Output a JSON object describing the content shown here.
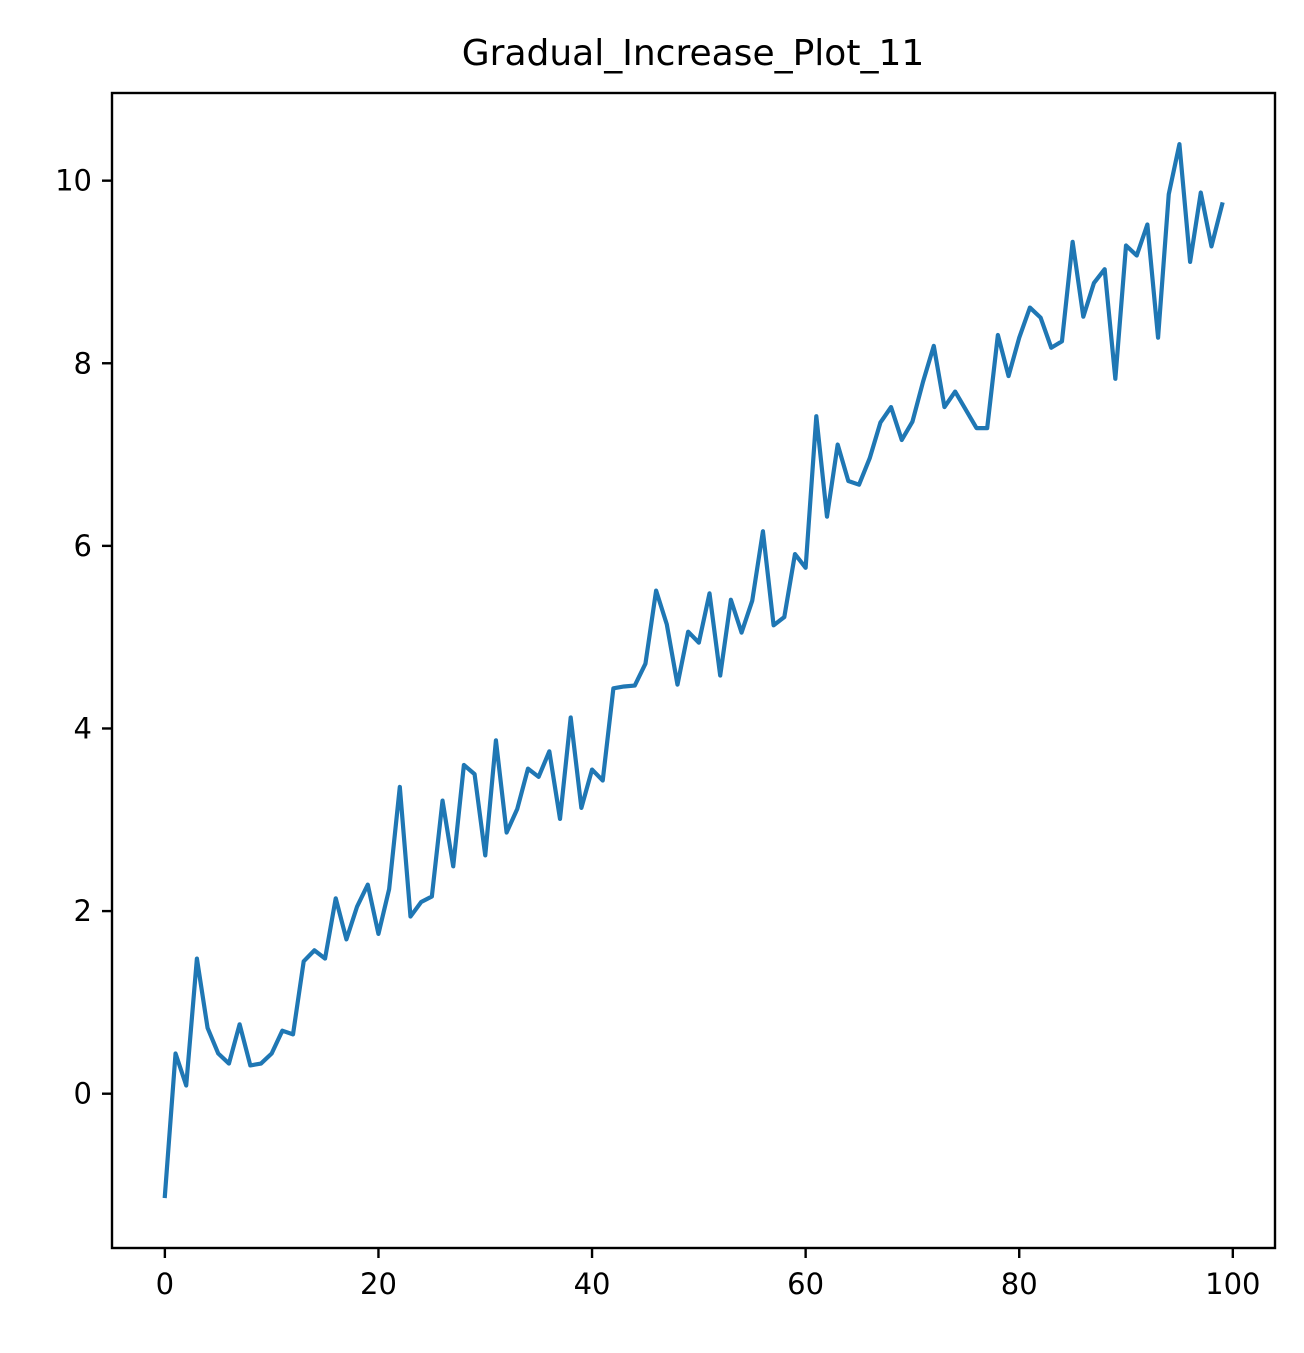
{
  "chart_data": {
    "type": "line",
    "title": "Gradual_Increase_Plot_11",
    "xlabel": "",
    "ylabel": "",
    "xlim": [
      -4.95,
      103.95
    ],
    "ylim": [
      -1.69,
      10.96
    ],
    "x_ticks": [
      0,
      20,
      40,
      60,
      80,
      100
    ],
    "y_ticks": [
      0,
      2,
      4,
      6,
      8,
      10
    ],
    "x_tick_labels": [
      "0",
      "20",
      "40",
      "60",
      "80",
      "100"
    ],
    "y_tick_labels": [
      "0",
      "2",
      "4",
      "6",
      "8",
      "10"
    ],
    "grid": false,
    "legend": "none",
    "series": [
      {
        "color": "#1f77b4",
        "x": [
          0,
          1,
          2,
          3,
          4,
          5,
          6,
          7,
          8,
          9,
          10,
          11,
          12,
          13,
          14,
          15,
          16,
          17,
          18,
          19,
          20,
          21,
          22,
          23,
          24,
          25,
          26,
          27,
          28,
          29,
          30,
          31,
          32,
          33,
          34,
          35,
          36,
          37,
          38,
          39,
          40,
          41,
          42,
          43,
          44,
          45,
          46,
          47,
          48,
          49,
          50,
          51,
          52,
          53,
          54,
          55,
          56,
          57,
          58,
          59,
          60,
          61,
          62,
          63,
          64,
          65,
          66,
          67,
          68,
          69,
          70,
          71,
          72,
          73,
          74,
          75,
          76,
          77,
          78,
          79,
          80,
          81,
          82,
          83,
          84,
          85,
          86,
          87,
          88,
          89,
          90,
          91,
          92,
          93,
          94,
          95,
          96,
          97,
          98,
          99
        ],
        "values": [
          -1.12,
          0.44,
          0.09,
          1.48,
          0.72,
          0.44,
          0.33,
          0.76,
          0.31,
          0.33,
          0.44,
          0.69,
          0.65,
          1.45,
          1.57,
          1.48,
          2.14,
          1.69,
          2.05,
          2.29,
          1.75,
          2.24,
          3.36,
          1.94,
          2.1,
          2.16,
          3.21,
          2.49,
          3.6,
          3.5,
          2.61,
          3.87,
          2.86,
          3.12,
          3.56,
          3.47,
          3.75,
          3.01,
          4.12,
          3.13,
          3.55,
          3.43,
          4.44,
          4.46,
          4.47,
          4.71,
          5.51,
          5.14,
          4.48,
          5.06,
          4.94,
          5.48,
          4.58,
          5.41,
          5.05,
          5.4,
          6.16,
          5.13,
          5.22,
          5.91,
          5.76,
          7.42,
          6.32,
          7.11,
          6.71,
          6.67,
          6.96,
          7.35,
          7.52,
          7.16,
          7.36,
          7.8,
          8.19,
          7.52,
          7.69,
          7.49,
          7.29,
          7.29,
          8.31,
          7.86,
          8.28,
          8.61,
          8.5,
          8.17,
          8.24,
          9.33,
          8.51,
          8.88,
          9.03,
          7.83,
          9.29,
          9.18,
          9.52,
          8.28,
          9.85,
          10.4,
          9.11,
          9.87,
          9.28,
          9.74
        ]
      }
    ]
  }
}
